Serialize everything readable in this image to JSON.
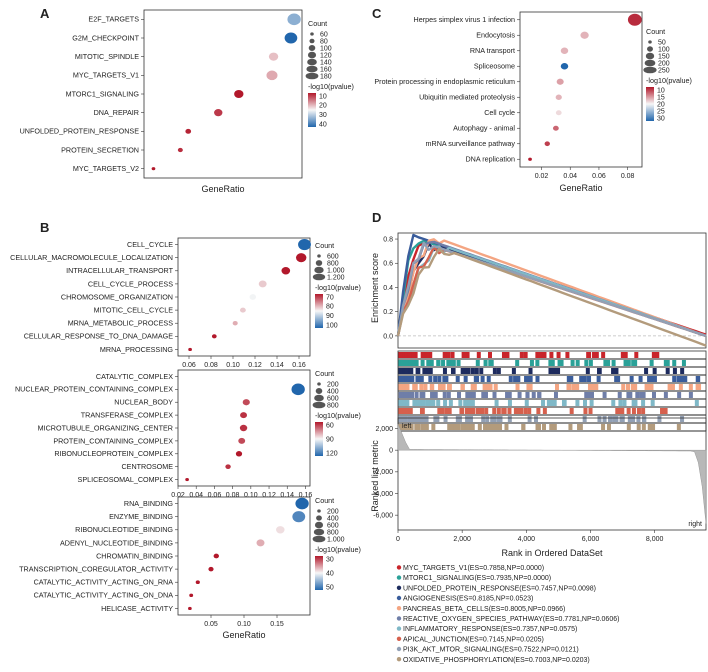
{
  "colors": {
    "high": "#b2182b",
    "mid": "#f7f7f7",
    "low": "#2166ac"
  },
  "chart_data": [
    {
      "panel": "A",
      "type": "scatter",
      "xlabel": "GeneRatio",
      "categories": [
        "E2F_TARGETS",
        "G2M_CHECKPOINT",
        "MITOTIC_SPINDLE",
        "MYC_TARGETS_V1",
        "MTORC1_SIGNALING",
        "DNA_REPAIR",
        "UNFOLDED_PROTEIN_RESPONSE",
        "PROTEIN_SECRETION",
        "MYC_TARGETS_V2"
      ],
      "x": [
        0.95,
        0.93,
        0.82,
        0.81,
        0.6,
        0.47,
        0.28,
        0.23,
        0.06
      ],
      "count": [
        185,
        175,
        125,
        150,
        125,
        110,
        70,
        60,
        40
      ],
      "neglog10p": [
        35,
        45,
        20,
        18,
        5,
        8,
        6,
        7,
        5
      ],
      "size_legend": {
        "title": "Count",
        "ticks": [
          "60",
          "80",
          "100",
          "120",
          "140",
          "160",
          "180"
        ]
      },
      "color_legend": {
        "title": "-log10(pvalue)",
        "ticks": [
          "10",
          "20",
          "30",
          "40"
        ]
      }
    },
    {
      "panel": "B1",
      "type": "scatter",
      "xlabel": "",
      "categories": [
        "CELL_CYCLE",
        "CELLULAR_MACROMOLECULE_LOCALIZATION",
        "INTRACELLULAR_TRANSPORT",
        "CELL_CYCLE_PROCESS",
        "CHROMOSOME_ORGANIZATION",
        "MITOTIC_CELL_CYCLE",
        "MRNA_METABOLIC_PROCESS",
        "CELLULAR_RESPONSE_TO_DNA_DAMAGE",
        "MRNA_PROCESSING"
      ],
      "x": [
        0.165,
        0.162,
        0.148,
        0.127,
        0.118,
        0.109,
        0.102,
        0.083,
        0.061
      ],
      "count": [
        1600,
        1250,
        1000,
        900,
        700,
        600,
        500,
        450,
        300
      ],
      "neglog10p": [
        115,
        70,
        70,
        88,
        93,
        88,
        85,
        70,
        70
      ],
      "xticks": [
        "0.06",
        "0.08",
        "0.10",
        "0.12",
        "0.14",
        "0.16"
      ],
      "size_legend": {
        "title": "Count",
        "ticks": [
          "600",
          "800",
          "1.000",
          "1.200"
        ]
      },
      "color_legend": {
        "title": "-log10(pvalue)",
        "ticks": [
          "70",
          "80",
          "90",
          "100"
        ]
      }
    },
    {
      "panel": "B2",
      "type": "scatter",
      "xlabel": "",
      "categories": [
        "CATALYTIC_COMPLEX",
        "NUCLEAR_PROTEIN_CONTAINING_COMPLEX",
        "NUCLEAR_BODY",
        "TRANSFERASE_COMPLEX",
        "MICROTUBULE_ORGANIZING_CENTER",
        "PROTEIN_CONTAINING_COMPLEX",
        "RIBONUCLEOPROTEIN_COMPLEX",
        "CENTROSOME",
        "SPLICEOSOMAL_COMPLEX"
      ],
      "x": [
        0.0,
        0.152,
        0.095,
        0.092,
        0.092,
        0.09,
        0.087,
        0.075,
        0.03
      ],
      "count": [
        0,
        900,
        400,
        380,
        420,
        380,
        330,
        260,
        120
      ],
      "neglog10p": [
        0,
        130,
        50,
        45,
        45,
        50,
        40,
        45,
        40
      ],
      "xticks": [
        "0.02",
        "0.04",
        "0.06",
        "0.08",
        "0.10",
        "0.12",
        "0.14",
        "0.16"
      ],
      "size_legend": {
        "title": "Count",
        "ticks": [
          "200",
          "400",
          "600",
          "800"
        ]
      },
      "color_legend": {
        "title": "-log10(pvalue)",
        "ticks": [
          "60",
          "90",
          "120"
        ]
      }
    },
    {
      "panel": "B3",
      "type": "scatter",
      "xlabel": "GeneRatio",
      "categories": [
        "RNA_BINDING",
        "ENZYME_BINDING",
        "RIBONUCLEOTIDE_BINDING",
        "ADENYL_NUCLEOTIDE_BINDING",
        "CHROMATIN_BINDING",
        "TRANSCRIPTION_COREGULATOR_ACTIVITY",
        "CATALYTIC_ACTIVITY_ACTING_ON_RNA",
        "CATALYTIC_ACTIVITY_ACTING_ON_DNA",
        "HELICASE_ACTIVITY"
      ],
      "x": [
        0.188,
        0.183,
        0.155,
        0.125,
        0.058,
        0.05,
        0.03,
        0.02,
        0.018
      ],
      "count": [
        1100,
        1050,
        600,
        550,
        280,
        250,
        150,
        120,
        100
      ],
      "neglog10p": [
        55,
        50,
        30,
        25,
        10,
        10,
        10,
        10,
        10
      ],
      "xticks": [
        "0.05",
        "0.10",
        "0.15"
      ],
      "size_legend": {
        "title": "Count",
        "ticks": [
          "200",
          "400",
          "600",
          "800",
          "1.000"
        ]
      },
      "color_legend": {
        "title": "-log10(pvalue)",
        "ticks": [
          "30",
          "40",
          "50"
        ]
      }
    },
    {
      "panel": "C",
      "type": "scatter",
      "xlabel": "GeneRatio",
      "categories": [
        "Herpes simplex virus 1 infection",
        "Endocytosis",
        "RNA transport",
        "Spliceosome",
        "Protein processing in endoplasmic reticulum",
        "Ubiquitin mediated proteolysis",
        "Cell cycle",
        "Autophagy - animal",
        "mRNA surveillance pathway",
        "DNA replication"
      ],
      "x": [
        0.085,
        0.05,
        0.036,
        0.036,
        0.033,
        0.032,
        0.032,
        0.03,
        0.024,
        0.012
      ],
      "count": [
        280,
        150,
        130,
        130,
        120,
        100,
        90,
        90,
        80,
        40
      ],
      "neglog10p": [
        8,
        15,
        15,
        30,
        14,
        15,
        17,
        11,
        9,
        7
      ],
      "xticks": [
        "0.02",
        "0.04",
        "0.06",
        "0.08"
      ],
      "size_legend": {
        "title": "Count",
        "ticks": [
          "50",
          "100",
          "150",
          "200",
          "250"
        ]
      },
      "color_legend": {
        "title": "-log10(pvalue)",
        "ticks": [
          "10",
          "15",
          "20",
          "25",
          "30"
        ]
      }
    },
    {
      "panel": "D",
      "type": "line",
      "ylabel_top": "Enrichment score",
      "ylabel_bottom": "Ranked list metric",
      "xlabel": "Rank in Ordered DataSet",
      "es_yticks": [
        "0.8",
        "0.6",
        "0.4",
        "0.2",
        "0.0"
      ],
      "metric_yticks": [
        "2,000",
        "0",
        "-2,000",
        "-4,000",
        "-6,000"
      ],
      "xticks": [
        "0",
        "2,000",
        "4,000",
        "6,000",
        "8,000"
      ],
      "left_label": "left",
      "right_label": "right",
      "series": [
        {
          "name": "MYC_TARGETS_V1(ES=0.7858,NP=0.0000)",
          "color": "#c9252b",
          "es": 0.7858,
          "peak_rank": 900,
          "end": 0.01
        },
        {
          "name": "MTORC1_SIGNALING(ES=0.7935,NP=0.0000)",
          "color": "#2aa198",
          "es": 0.7935,
          "peak_rank": 700,
          "end": 0.0
        },
        {
          "name": "UNFOLDED_PROTEIN_RESPONSE(ES=0.7457,NP=0.0098)",
          "color": "#1d2b5e",
          "es": 0.7457,
          "peak_rank": 1200,
          "end": 0.0
        },
        {
          "name": "ANGIOGENESIS(ES=0.8185,NP=0.0523)",
          "color": "#3a5d9c",
          "es": 0.8185,
          "peak_rank": 600,
          "end": 0.0
        },
        {
          "name": "PANCREAS_BETA_CELLS(ES=0.8005,NP=0.0966)",
          "color": "#f4a582",
          "es": 0.8005,
          "peak_rank": 1300,
          "end": 0.0
        },
        {
          "name": "REACTIVE_OXYGEN_SPECIES_PATHWAY(ES=0.7781,NP=0.0606)",
          "color": "#6f7ea8",
          "es": 0.7781,
          "peak_rank": 1100,
          "end": 0.0
        },
        {
          "name": "INFLAMMATORY_RESPONSE(ES=0.7357,NP=0.0575)",
          "color": "#7fb8c7",
          "es": 0.7357,
          "peak_rank": 1500,
          "end": 0.0
        },
        {
          "name": "APICAL_JUNCTION(ES=0.7145,NP=0.0205)",
          "color": "#d6604d",
          "es": 0.7145,
          "peak_rank": 1400,
          "end": 0.0
        },
        {
          "name": "PI3K_AKT_MTOR_SIGNALING(ES=0.7522,NP=0.0121)",
          "color": "#92a0b5",
          "es": 0.7522,
          "peak_rank": 1000,
          "end": 0.0
        },
        {
          "name": "OXIDATIVE_PHOSPHORYLATION(ES=0.7003,NP=0.0203)",
          "color": "#b39b7c",
          "es": 0.7003,
          "peak_rank": 1600,
          "end": -0.08
        }
      ]
    }
  ]
}
